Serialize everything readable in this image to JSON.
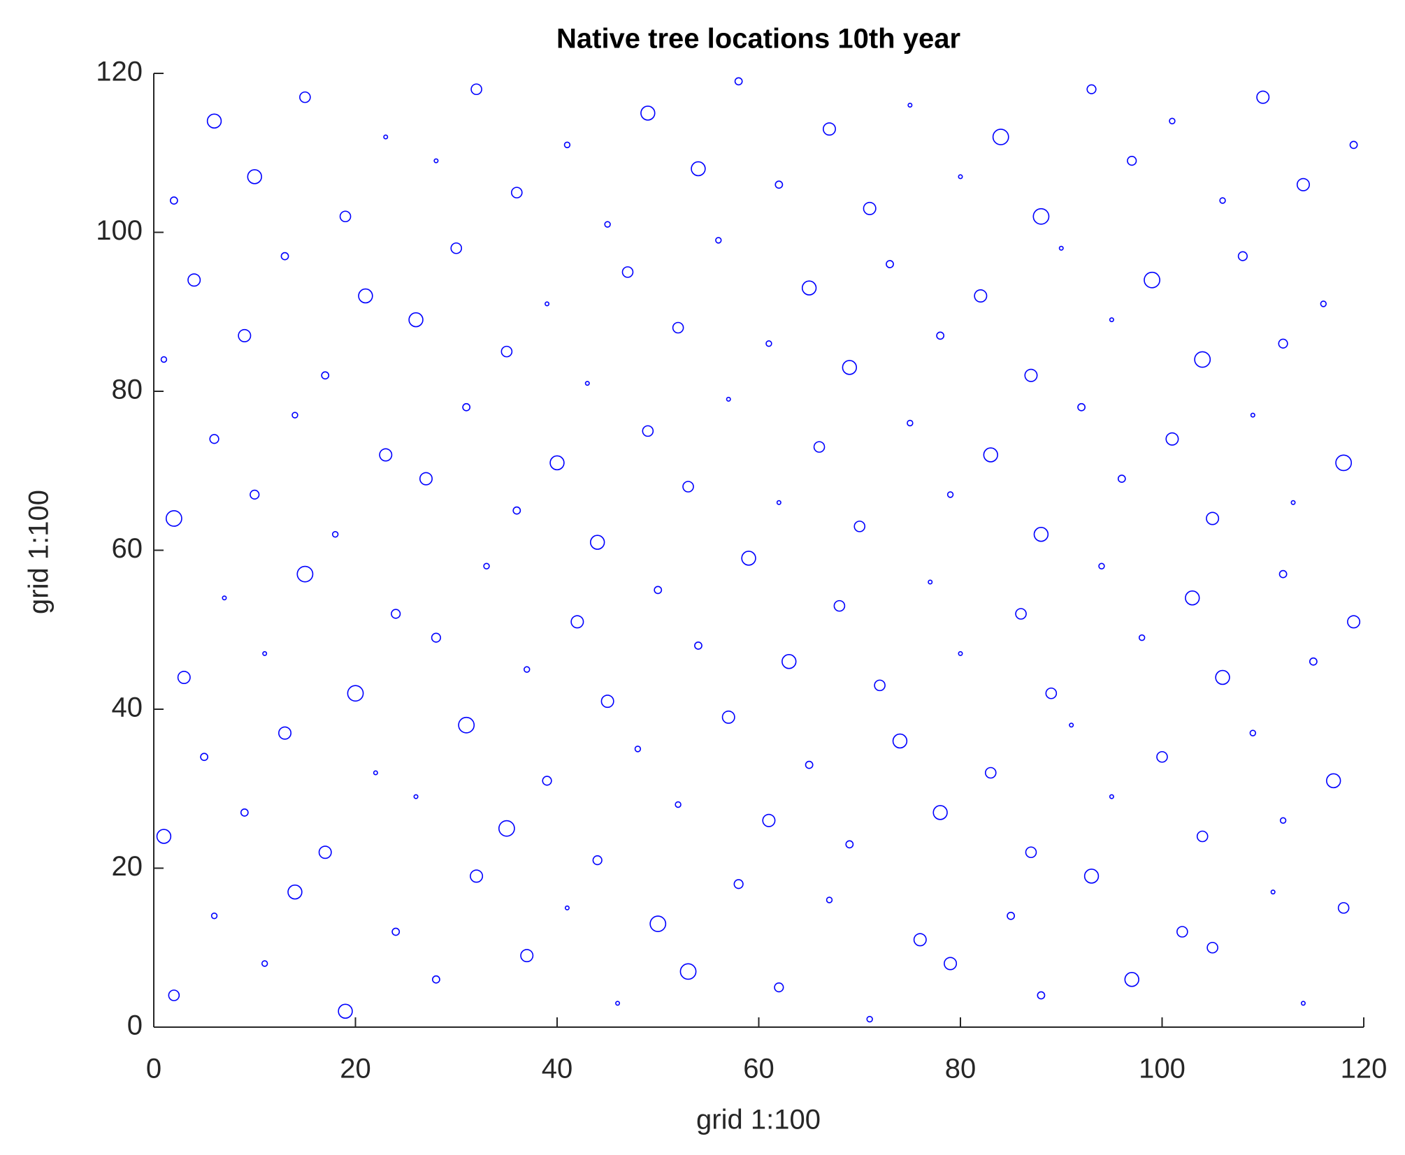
{
  "chart_data": {
    "type": "scatter",
    "title": "Native tree locations 10th year",
    "xlabel": "grid 1:100",
    "ylabel": "grid 1:100",
    "xlim": [
      0,
      120
    ],
    "ylim": [
      0,
      120
    ],
    "xticks": [
      0,
      20,
      40,
      60,
      80,
      100,
      120
    ],
    "yticks": [
      0,
      20,
      40,
      60,
      80,
      100,
      120
    ],
    "color": "#0000ff",
    "x": [
      2,
      11,
      19,
      28,
      37,
      46,
      53,
      62,
      71,
      79,
      88,
      97,
      105,
      114,
      6,
      14,
      24,
      32,
      41,
      50,
      58,
      67,
      76,
      85,
      93,
      102,
      111,
      118,
      1,
      9,
      17,
      26,
      35,
      44,
      52,
      61,
      69,
      78,
      87,
      95,
      104,
      112,
      5,
      13,
      22,
      31,
      39,
      48,
      57,
      65,
      74,
      83,
      91,
      100,
      109,
      117,
      3,
      11,
      20,
      28,
      37,
      45,
      54,
      63,
      72,
      80,
      89,
      98,
      106,
      115,
      7,
      15,
      24,
      33,
      42,
      50,
      59,
      68,
      77,
      86,
      94,
      103,
      112,
      119,
      2,
      10,
      18,
      27,
      36,
      44,
      53,
      62,
      70,
      79,
      88,
      96,
      105,
      113,
      6,
      14,
      23,
      31,
      40,
      49,
      57,
      66,
      75,
      83,
      92,
      101,
      109,
      118,
      1,
      9,
      17,
      26,
      35,
      43,
      52,
      61,
      69,
      78,
      87,
      95,
      104,
      112,
      4,
      13,
      21,
      30,
      39,
      47,
      56,
      65,
      73,
      82,
      90,
      99,
      108,
      116,
      2,
      10,
      19,
      28,
      36,
      45,
      54,
      62,
      71,
      80,
      88,
      97,
      106,
      114,
      6,
      15,
      23,
      32,
      41,
      49,
      58,
      67,
      75,
      84,
      93,
      101,
      110,
      119
    ],
    "values": [
      4,
      8,
      2,
      6,
      9,
      3,
      7,
      5,
      1,
      8,
      4,
      6,
      10,
      3,
      14,
      17,
      12,
      19,
      15,
      13,
      18,
      16,
      11,
      14,
      19,
      12,
      17,
      15,
      24,
      27,
      22,
      29,
      25,
      21,
      28,
      26,
      23,
      27,
      22,
      29,
      24,
      26,
      34,
      37,
      32,
      38,
      31,
      35,
      39,
      33,
      36,
      32,
      38,
      34,
      37,
      31,
      44,
      47,
      42,
      49,
      45,
      41,
      48,
      46,
      43,
      47,
      42,
      49,
      44,
      46,
      54,
      57,
      52,
      58,
      51,
      55,
      59,
      53,
      56,
      52,
      58,
      54,
      57,
      51,
      64,
      67,
      62,
      69,
      65,
      61,
      68,
      66,
      63,
      67,
      62,
      69,
      64,
      66,
      74,
      77,
      72,
      78,
      71,
      75,
      79,
      73,
      76,
      72,
      78,
      74,
      77,
      71,
      84,
      87,
      82,
      89,
      85,
      81,
      88,
      86,
      83,
      87,
      82,
      89,
      84,
      86,
      94,
      97,
      92,
      98,
      91,
      95,
      99,
      93,
      96,
      92,
      98,
      94,
      97,
      91,
      104,
      107,
      102,
      109,
      105,
      101,
      108,
      106,
      103,
      107,
      102,
      109,
      104,
      106,
      114,
      117,
      112,
      118,
      111,
      115,
      119,
      113,
      116,
      112,
      118,
      114,
      117,
      111
    ],
    "sizes": [
      5,
      2,
      7,
      3,
      6,
      1,
      8,
      4,
      2,
      6,
      3,
      7,
      5,
      1,
      2,
      7,
      3,
      6,
      1,
      8,
      4,
      2,
      6,
      3,
      7,
      5,
      1,
      5,
      7,
      3,
      6,
      1,
      8,
      4,
      2,
      6,
      3,
      7,
      5,
      1,
      5,
      2,
      3,
      6,
      1,
      8,
      4,
      2,
      6,
      3,
      7,
      5,
      1,
      5,
      2,
      7,
      6,
      1,
      8,
      4,
      2,
      6,
      3,
      7,
      5,
      1,
      5,
      2,
      7,
      3,
      1,
      8,
      4,
      2,
      6,
      3,
      7,
      5,
      1,
      5,
      2,
      7,
      3,
      6,
      8,
      4,
      2,
      6,
      3,
      7,
      5,
      1,
      5,
      2,
      7,
      3,
      6,
      1,
      4,
      2,
      6,
      3,
      7,
      5,
      1,
      5,
      2,
      7,
      3,
      6,
      1,
      8,
      2,
      6,
      3,
      7,
      5,
      1,
      5,
      2,
      7,
      3,
      6,
      1,
      8,
      4,
      6,
      3,
      7,
      5,
      1,
      5,
      2,
      7,
      3,
      6,
      1,
      8,
      4,
      2,
      3,
      7,
      5,
      1,
      5,
      2,
      7,
      3,
      6,
      1,
      8,
      4,
      2,
      6,
      7,
      5,
      1,
      5,
      2,
      7,
      3,
      6,
      1,
      8,
      4,
      2,
      6,
      3
    ]
  }
}
